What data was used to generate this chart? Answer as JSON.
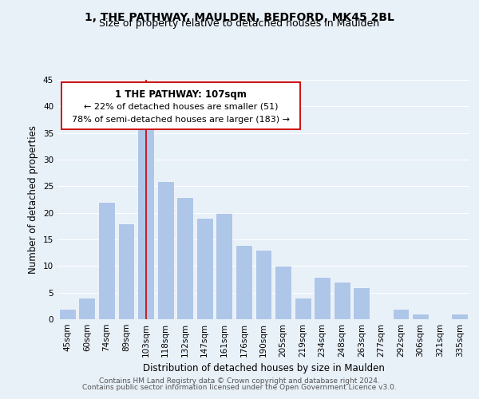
{
  "title": "1, THE PATHWAY, MAULDEN, BEDFORD, MK45 2BL",
  "subtitle": "Size of property relative to detached houses in Maulden",
  "xlabel": "Distribution of detached houses by size in Maulden",
  "ylabel": "Number of detached properties",
  "categories": [
    "45sqm",
    "60sqm",
    "74sqm",
    "89sqm",
    "103sqm",
    "118sqm",
    "132sqm",
    "147sqm",
    "161sqm",
    "176sqm",
    "190sqm",
    "205sqm",
    "219sqm",
    "234sqm",
    "248sqm",
    "263sqm",
    "277sqm",
    "292sqm",
    "306sqm",
    "321sqm",
    "335sqm"
  ],
  "values": [
    2,
    4,
    22,
    18,
    37,
    26,
    23,
    19,
    20,
    14,
    13,
    10,
    4,
    8,
    7,
    6,
    0,
    2,
    1,
    0,
    1
  ],
  "bar_color": "#aec6e8",
  "vline_bar_index": 4,
  "vline_color": "#cc0000",
  "ylim": [
    0,
    45
  ],
  "yticks": [
    0,
    5,
    10,
    15,
    20,
    25,
    30,
    35,
    40,
    45
  ],
  "annotation_title": "1 THE PATHWAY: 107sqm",
  "annotation_line1": "← 22% of detached houses are smaller (51)",
  "annotation_line2": "78% of semi-detached houses are larger (183) →",
  "footer_line1": "Contains HM Land Registry data © Crown copyright and database right 2024.",
  "footer_line2": "Contains public sector information licensed under the Open Government Licence v3.0.",
  "background_color": "#e8f0f8",
  "plot_background_color": "#e8f0f8",
  "grid_color": "#ffffff",
  "title_fontsize": 10,
  "subtitle_fontsize": 9,
  "axis_label_fontsize": 8.5,
  "tick_fontsize": 7.5,
  "annotation_fontsize": 8,
  "footer_fontsize": 6.5
}
